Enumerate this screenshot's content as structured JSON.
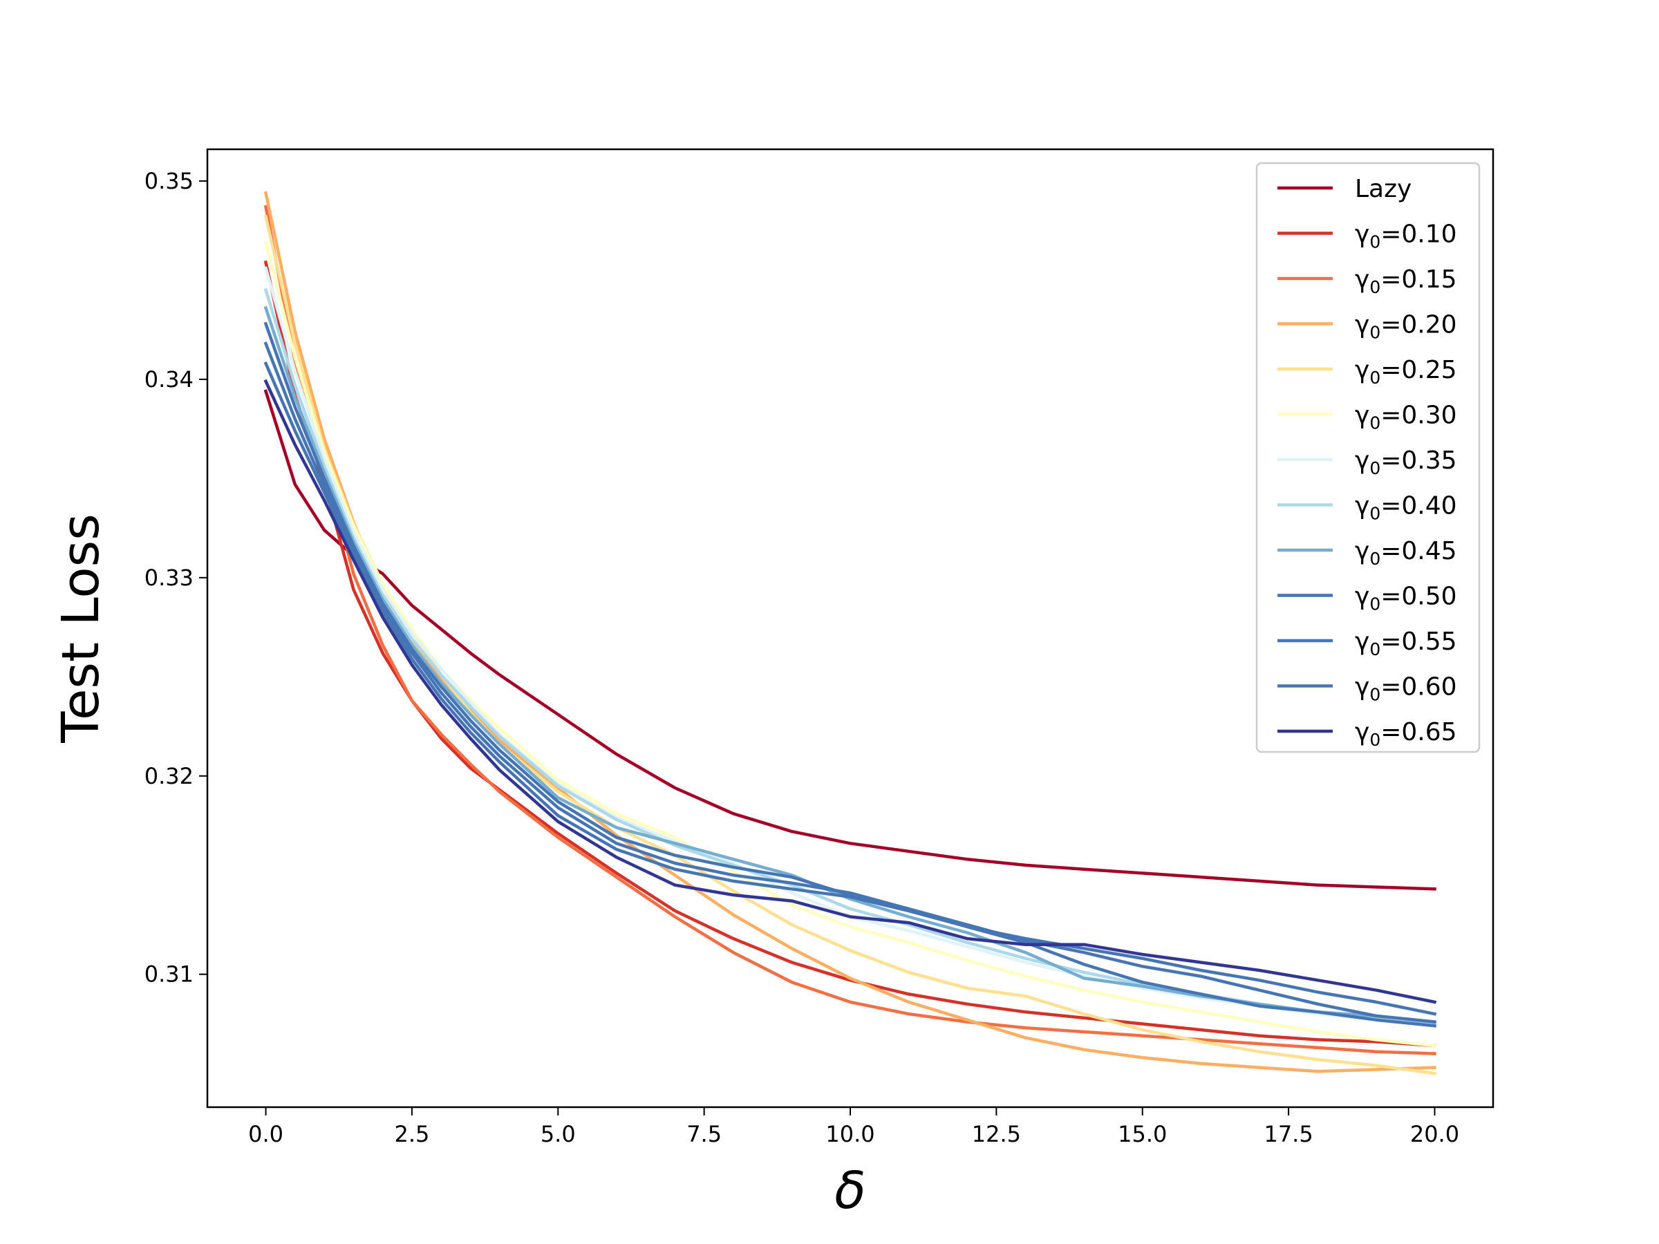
{
  "chart_data": {
    "type": "line",
    "title": "",
    "xlabel": "δ",
    "ylabel": "Test Loss",
    "xlim": [
      -1,
      21
    ],
    "ylim": [
      0.3033,
      0.3516
    ],
    "xticks": [
      0,
      2.5,
      5,
      7.5,
      10,
      12.5,
      15,
      17.5,
      20
    ],
    "xtick_labels": [
      "0.0",
      "2.5",
      "5.0",
      "7.5",
      "10.0",
      "12.5",
      "15.0",
      "17.5",
      "20.0"
    ],
    "yticks": [
      0.31,
      0.32,
      0.33,
      0.34,
      0.35
    ],
    "ytick_labels": [
      "0.31",
      "0.32",
      "0.33",
      "0.34",
      "0.35"
    ],
    "grid": false,
    "legend_position": "top-right",
    "series": [
      {
        "name": "Lazy",
        "label_prefix": "Lazy",
        "label_sub": "",
        "label_value": "",
        "color": "#a50026",
        "x": [
          0,
          0.5,
          1,
          1.5,
          2,
          2.5,
          3,
          3.5,
          4,
          5,
          6,
          7,
          8,
          9,
          10,
          11,
          12,
          13,
          14,
          15,
          16,
          17,
          18,
          19,
          20
        ],
        "y": [
          0.3394,
          0.3347,
          0.3324,
          0.3311,
          0.3302,
          0.3286,
          0.3274,
          0.3262,
          0.3251,
          0.3231,
          0.3211,
          0.3194,
          0.3181,
          0.3172,
          0.3166,
          0.3162,
          0.3158,
          0.3155,
          0.3153,
          0.3151,
          0.3149,
          0.3147,
          0.3145,
          0.3144,
          0.3143
        ]
      },
      {
        "name": "γ0=0.10",
        "label_prefix": "γ",
        "label_sub": "0",
        "label_value": "=0.10",
        "color": "#d73027",
        "x": [
          0,
          0.5,
          1,
          1.5,
          2,
          2.5,
          3,
          3.5,
          4,
          5,
          6,
          7,
          8,
          9,
          10,
          11,
          12,
          13,
          14,
          15,
          16,
          17,
          18,
          19,
          20
        ],
        "y": [
          0.3459,
          0.3392,
          0.3348,
          0.3294,
          0.3262,
          0.3238,
          0.3219,
          0.3204,
          0.3193,
          0.3171,
          0.3151,
          0.3132,
          0.3118,
          0.3106,
          0.3097,
          0.309,
          0.3085,
          0.3081,
          0.3078,
          0.3075,
          0.3072,
          0.3069,
          0.3067,
          0.3066,
          0.3064
        ]
      },
      {
        "name": "γ0=0.15",
        "label_prefix": "γ",
        "label_sub": "0",
        "label_value": "=0.15",
        "color": "#f46d43",
        "x": [
          0,
          0.5,
          1,
          1.5,
          2,
          2.5,
          3,
          3.5,
          4,
          5,
          6,
          7,
          8,
          9,
          10,
          11,
          12,
          13,
          14,
          15,
          16,
          17,
          18,
          19,
          20
        ],
        "y": [
          0.3487,
          0.3409,
          0.3358,
          0.3302,
          0.3266,
          0.3238,
          0.3221,
          0.3206,
          0.3192,
          0.3169,
          0.3149,
          0.3129,
          0.3111,
          0.3096,
          0.3086,
          0.308,
          0.3076,
          0.3073,
          0.3071,
          0.3069,
          0.3067,
          0.3065,
          0.3063,
          0.3061,
          0.306
        ]
      },
      {
        "name": "γ0=0.20",
        "label_prefix": "γ",
        "label_sub": "0",
        "label_value": "=0.20",
        "color": "#fdae61",
        "x": [
          0,
          0.5,
          1,
          1.5,
          2,
          2.5,
          3,
          3.5,
          4,
          5,
          6,
          7,
          8,
          9,
          10,
          11,
          12,
          13,
          14,
          15,
          16,
          17,
          18,
          19,
          20
        ],
        "y": [
          0.3494,
          0.3424,
          0.337,
          0.3328,
          0.3293,
          0.3268,
          0.3249,
          0.3233,
          0.3218,
          0.3194,
          0.317,
          0.315,
          0.313,
          0.3113,
          0.3098,
          0.3086,
          0.3077,
          0.3068,
          0.3062,
          0.3058,
          0.3055,
          0.3053,
          0.3051,
          0.3052,
          0.3053
        ]
      },
      {
        "name": "γ0=0.25",
        "label_prefix": "γ",
        "label_sub": "0",
        "label_value": "=0.25",
        "color": "#fee090",
        "x": [
          0,
          0.5,
          1,
          1.5,
          2,
          2.5,
          3,
          3.5,
          4,
          5,
          6,
          7,
          8,
          9,
          10,
          11,
          12,
          13,
          14,
          15,
          16,
          17,
          18,
          19,
          20
        ],
        "y": [
          0.3482,
          0.3418,
          0.3365,
          0.3327,
          0.3297,
          0.3272,
          0.3251,
          0.3232,
          0.3216,
          0.3192,
          0.3174,
          0.316,
          0.3142,
          0.3125,
          0.3112,
          0.3101,
          0.3093,
          0.3089,
          0.308,
          0.3072,
          0.3066,
          0.3061,
          0.3057,
          0.3054,
          0.305
        ]
      },
      {
        "name": "γ0=0.30",
        "label_prefix": "γ",
        "label_sub": "0",
        "label_value": "=0.30",
        "color": "#ffffbf",
        "x": [
          0,
          0.5,
          1,
          1.5,
          2,
          2.5,
          3,
          3.5,
          4,
          5,
          6,
          7,
          8,
          9,
          10,
          11,
          12,
          13,
          14,
          15,
          16,
          17,
          18,
          19,
          20
        ],
        "y": [
          0.3469,
          0.3411,
          0.3363,
          0.3326,
          0.3297,
          0.3274,
          0.3254,
          0.3238,
          0.3224,
          0.3198,
          0.3181,
          0.3169,
          0.3152,
          0.3135,
          0.3124,
          0.3116,
          0.3107,
          0.3099,
          0.3092,
          0.3086,
          0.3081,
          0.3076,
          0.3071,
          0.3067,
          0.3064
        ]
      },
      {
        "name": "γ0=0.35",
        "label_prefix": "γ",
        "label_sub": "0",
        "label_value": "=0.35",
        "color": "#e0f3f8",
        "x": [
          0,
          0.5,
          1,
          1.5,
          2,
          2.5,
          3,
          3.5,
          4,
          5,
          6,
          7,
          8,
          9,
          10,
          11,
          12,
          13,
          14,
          15,
          16,
          17,
          18,
          19,
          20
        ],
        "y": [
          0.3456,
          0.3404,
          0.336,
          0.3323,
          0.3294,
          0.3272,
          0.3254,
          0.3237,
          0.3221,
          0.3196,
          0.3179,
          0.3167,
          0.3156,
          0.3141,
          0.3129,
          0.3122,
          0.3114,
          0.3106,
          0.3099,
          0.3093,
          0.3088,
          0.3084,
          0.308,
          0.3077,
          0.3074
        ]
      },
      {
        "name": "γ0=0.40",
        "label_prefix": "γ",
        "label_sub": "0",
        "label_value": "=0.40",
        "color": "#abd9e9",
        "x": [
          0,
          0.5,
          1,
          1.5,
          2,
          2.5,
          3,
          3.5,
          4,
          5,
          6,
          7,
          8,
          9,
          10,
          11,
          12,
          13,
          14,
          15,
          16,
          17,
          18,
          19,
          20
        ],
        "y": [
          0.3445,
          0.3397,
          0.3356,
          0.332,
          0.3291,
          0.3269,
          0.3251,
          0.3235,
          0.322,
          0.3195,
          0.3178,
          0.3165,
          0.3155,
          0.3145,
          0.3133,
          0.3125,
          0.3116,
          0.3108,
          0.3101,
          0.3095,
          0.309,
          0.3085,
          0.3081,
          0.3078,
          0.3075
        ]
      },
      {
        "name": "γ0=0.45",
        "label_prefix": "γ",
        "label_sub": "0",
        "label_value": "=0.45",
        "color": "#74add1",
        "x": [
          0,
          0.5,
          1,
          1.5,
          2,
          2.5,
          3,
          3.5,
          4,
          5,
          6,
          7,
          8,
          9,
          10,
          11,
          12,
          13,
          14,
          15,
          16,
          17,
          18,
          19,
          20
        ],
        "y": [
          0.3436,
          0.3391,
          0.3353,
          0.3318,
          0.3289,
          0.3266,
          0.3247,
          0.3231,
          0.3216,
          0.3189,
          0.3174,
          0.3166,
          0.3158,
          0.315,
          0.3138,
          0.3129,
          0.3121,
          0.3111,
          0.3098,
          0.3094,
          0.3089,
          0.3085,
          0.3081,
          0.3079,
          0.3076
        ]
      },
      {
        "name": "γ0=0.50",
        "label_prefix": "γ",
        "label_sub": "0",
        "label_value": "=0.50",
        "color": "#4575b4",
        "x": [
          0,
          0.5,
          1,
          1.5,
          2,
          2.5,
          3,
          3.5,
          4,
          5,
          6,
          7,
          8,
          9,
          10,
          11,
          12,
          13,
          14,
          15,
          16,
          17,
          18,
          19,
          20
        ],
        "y": [
          0.3428,
          0.3386,
          0.335,
          0.3316,
          0.3287,
          0.3264,
          0.3245,
          0.3228,
          0.3213,
          0.3187,
          0.3169,
          0.316,
          0.3154,
          0.3149,
          0.314,
          0.3133,
          0.3124,
          0.3116,
          0.3105,
          0.3096,
          0.309,
          0.3084,
          0.3081,
          0.3077,
          0.3074
        ]
      },
      {
        "name": "γ0=0.55",
        "label_prefix": "γ",
        "label_sub": "0",
        "label_value": "=0.55",
        "color": "#4575b4",
        "x": [
          0,
          0.5,
          1,
          1.5,
          2,
          2.5,
          3,
          3.5,
          4,
          5,
          6,
          7,
          8,
          9,
          10,
          11,
          12,
          13,
          14,
          15,
          16,
          17,
          18,
          19,
          20
        ],
        "y": [
          0.3418,
          0.338,
          0.3346,
          0.3314,
          0.3285,
          0.3262,
          0.3242,
          0.3225,
          0.321,
          0.3184,
          0.3166,
          0.3156,
          0.315,
          0.3146,
          0.3141,
          0.3133,
          0.3125,
          0.3117,
          0.3111,
          0.3104,
          0.3099,
          0.3092,
          0.3085,
          0.3079,
          0.3076
        ]
      },
      {
        "name": "γ0=0.60",
        "label_prefix": "γ",
        "label_sub": "0",
        "label_value": "=0.60",
        "color": "#4575b4",
        "x": [
          0,
          0.5,
          1,
          1.5,
          2,
          2.5,
          3,
          3.5,
          4,
          5,
          6,
          7,
          8,
          9,
          10,
          11,
          12,
          13,
          14,
          15,
          16,
          17,
          18,
          19,
          20
        ],
        "y": [
          0.3408,
          0.3374,
          0.3343,
          0.3312,
          0.3283,
          0.3259,
          0.3239,
          0.3222,
          0.3207,
          0.318,
          0.3163,
          0.3153,
          0.3147,
          0.3143,
          0.3139,
          0.3132,
          0.3124,
          0.3118,
          0.3113,
          0.3108,
          0.3102,
          0.3097,
          0.3091,
          0.3086,
          0.308
        ]
      },
      {
        "name": "γ0=0.65",
        "label_prefix": "γ",
        "label_sub": "0",
        "label_value": "=0.65",
        "color": "#313695",
        "x": [
          0,
          0.5,
          1,
          1.5,
          2,
          2.5,
          3,
          3.5,
          4,
          5,
          6,
          7,
          8,
          9,
          10,
          11,
          12,
          13,
          14,
          15,
          16,
          17,
          18,
          19,
          20
        ],
        "y": [
          0.3399,
          0.3367,
          0.3339,
          0.3309,
          0.328,
          0.3256,
          0.3236,
          0.3219,
          0.3203,
          0.3177,
          0.3159,
          0.3145,
          0.314,
          0.3137,
          0.3129,
          0.3126,
          0.3118,
          0.3115,
          0.3115,
          0.311,
          0.3106,
          0.3102,
          0.3097,
          0.3092,
          0.3086
        ]
      }
    ]
  }
}
